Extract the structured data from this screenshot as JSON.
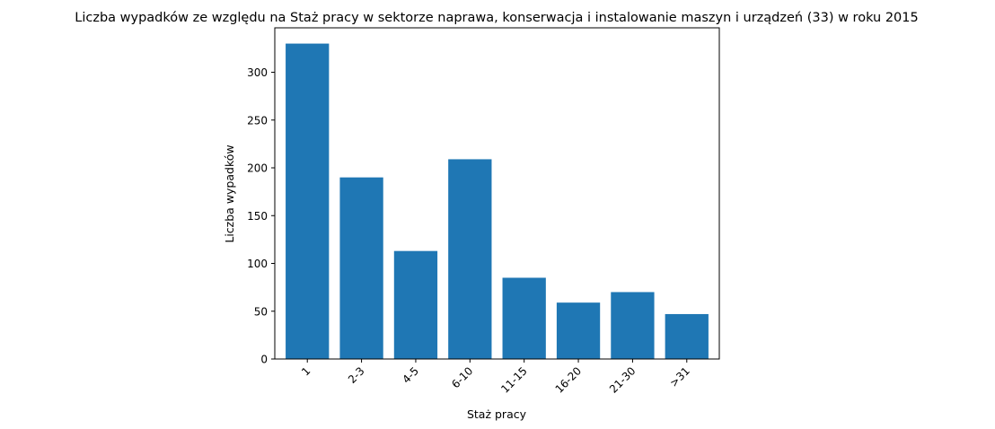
{
  "chart_data": {
    "type": "bar",
    "title": "Liczba wypadków ze względu na Staż pracy w sektorze naprawa, konserwacja i instalowanie maszyn i urządzeń  (33) w roku 2015",
    "xlabel": "Staż pracy",
    "ylabel": "Liczba wypadków",
    "categories": [
      "1",
      "2-3",
      "4-5",
      "6-10",
      "11-15",
      "16-20",
      "21-30",
      ">31"
    ],
    "values": [
      330,
      190,
      113,
      209,
      85,
      59,
      70,
      47
    ],
    "ylim": [
      0,
      346.5
    ],
    "yticks": [
      0,
      50,
      100,
      150,
      200,
      250,
      300
    ],
    "bar_color": "#1f77b4",
    "grid": false,
    "x_tick_rotation": -45
  }
}
